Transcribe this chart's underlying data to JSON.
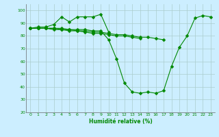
{
  "x": [
    0,
    1,
    2,
    3,
    4,
    5,
    6,
    7,
    8,
    9,
    10,
    11,
    12,
    13,
    14,
    15,
    16,
    17,
    18,
    19,
    20,
    21,
    22,
    23
  ],
  "line1": [
    86,
    87,
    87,
    89,
    95,
    91,
    95,
    95,
    95,
    97,
    83,
    null,
    null,
    null,
    null,
    null,
    null,
    null,
    null,
    null,
    null,
    null,
    null,
    null
  ],
  "line2": [
    86,
    86,
    86,
    86,
    86,
    85,
    85,
    85,
    84,
    84,
    77,
    62,
    43,
    36,
    35,
    36,
    35,
    37,
    56,
    71,
    80,
    94,
    96,
    95
  ],
  "line3": [
    86,
    86,
    86,
    86,
    85,
    85,
    84,
    84,
    83,
    83,
    82,
    81,
    81,
    80,
    79,
    79,
    78,
    77,
    null,
    null,
    null,
    null,
    null,
    null
  ],
  "line4": [
    86,
    86,
    86,
    85,
    85,
    84,
    84,
    83,
    82,
    82,
    81,
    80,
    80,
    79,
    78,
    null,
    null,
    null,
    null,
    null,
    null,
    null,
    null,
    null
  ],
  "bg_color": "#cceeff",
  "grid_color": "#aacccc",
  "line_color": "#008800",
  "xlabel": "Humidité relative (%)",
  "xlabel_color": "#008800",
  "tick_color": "#008800",
  "ylim": [
    20,
    105
  ],
  "yticks": [
    20,
    30,
    40,
    50,
    60,
    70,
    80,
    90,
    100
  ],
  "xlim": [
    -0.5,
    23.5
  ],
  "xticks": [
    0,
    1,
    2,
    3,
    4,
    5,
    6,
    7,
    8,
    9,
    10,
    11,
    12,
    13,
    14,
    15,
    16,
    17,
    18,
    19,
    20,
    21,
    22,
    23
  ]
}
